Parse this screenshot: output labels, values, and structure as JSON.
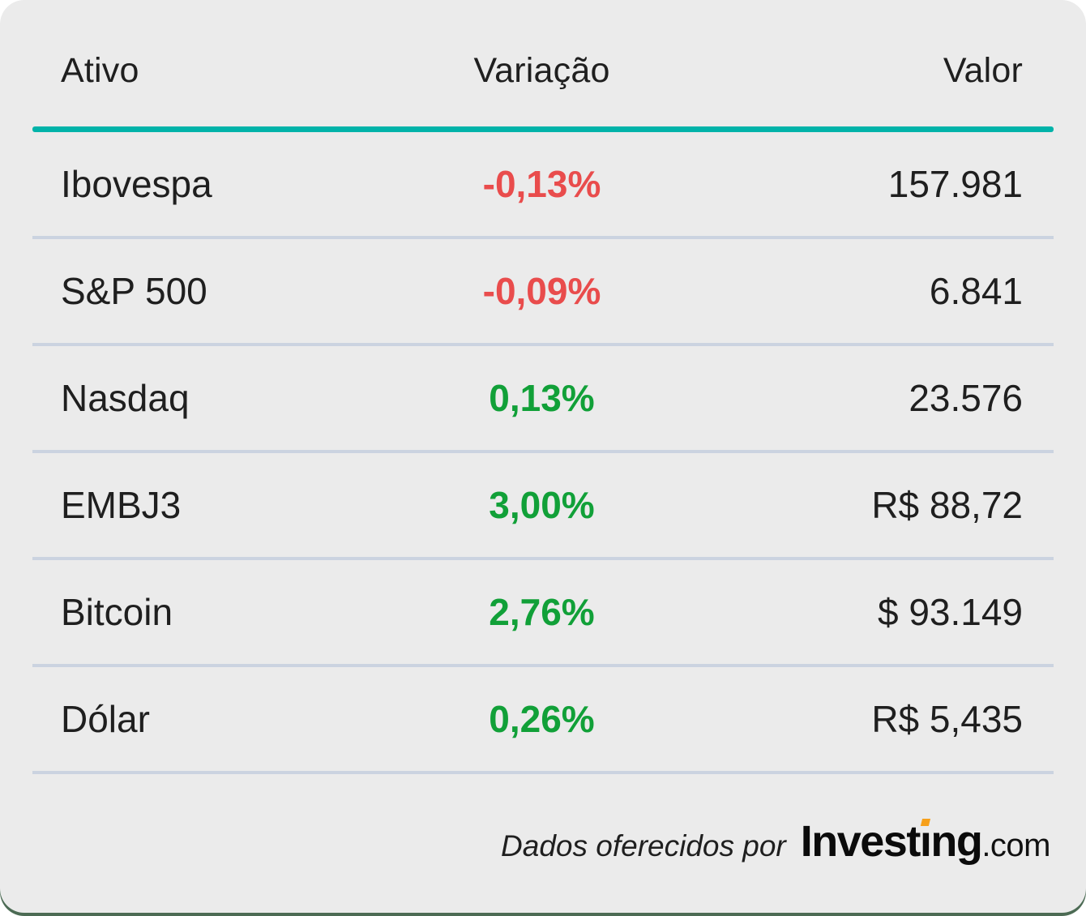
{
  "table": {
    "columns": [
      {
        "key": "ativo",
        "label": "Ativo"
      },
      {
        "key": "variacao",
        "label": "Variação"
      },
      {
        "key": "valor",
        "label": "Valor"
      }
    ],
    "rows": [
      {
        "ativo": "Ibovespa",
        "variacao": "-0,13%",
        "valor": "157.981",
        "direction": "down"
      },
      {
        "ativo": "S&P 500",
        "variacao": "-0,09%",
        "valor": "6.841",
        "direction": "down"
      },
      {
        "ativo": "Nasdaq",
        "variacao": "0,13%",
        "valor": "23.576",
        "direction": "up"
      },
      {
        "ativo": "EMBJ3",
        "variacao": "3,00%",
        "valor": "R$ 88,72",
        "direction": "up"
      },
      {
        "ativo": "Bitcoin",
        "variacao": "2,76%",
        "valor": "$ 93.149",
        "direction": "up"
      },
      {
        "ativo": "Dólar",
        "variacao": "0,26%",
        "valor": "R$ 5,435",
        "direction": "up"
      }
    ]
  },
  "footer": {
    "caption": "Dados oferecidos por",
    "brand": {
      "prefix": "Invest",
      "i_char": "ı",
      "suffix": "ng",
      "domain": ".com"
    }
  },
  "colors": {
    "card_bg": "#EBEBEB",
    "backdrop_green": "#4C6B54",
    "accent_teal": "#00B3A9",
    "divider": "#CBD3E0",
    "text": "#1F1F1F",
    "positive": "#11A038",
    "negative": "#E94C4C",
    "brand_orange": "#F6A01B"
  }
}
